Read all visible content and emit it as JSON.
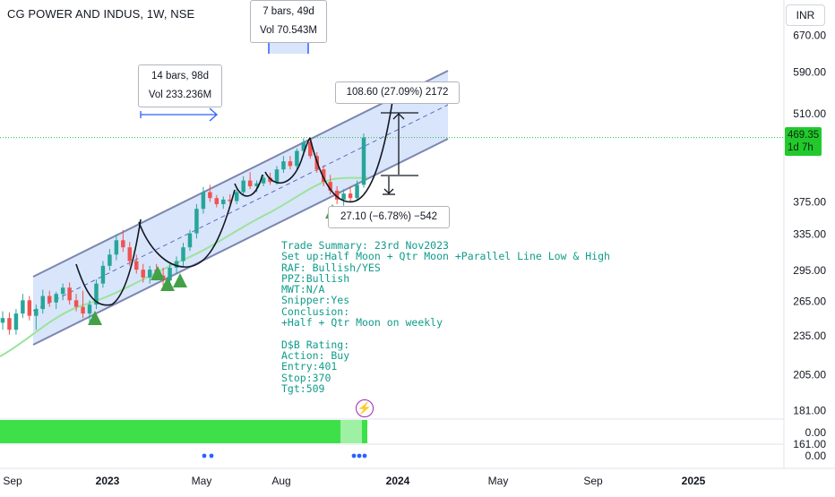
{
  "header": {
    "symbol_title": "CG POWER AND INDUS, 1W, NSE",
    "currency_label": "INR"
  },
  "price_tag": {
    "price": "469.35",
    "countdown": "1d 7h"
  },
  "measure_labels": {
    "top_range": {
      "bars": "7 bars, 49d",
      "volume": "Vol 70.543M"
    },
    "left_range": {
      "bars": "14 bars, 98d",
      "volume": "Vol 233.236M"
    },
    "up_move": "108.60 (27.09%) 2172",
    "down_move": "27.10 (−6.78%) −542"
  },
  "trade_summary": [
    "Trade Summary: 23rd Nov2023",
    "Set up:Half Moon + Qtr Moon +Parallel Line Low & High",
    "RAF: Bullish/YES",
    "PPZ:Bullish",
    "MWT:N/A",
    "Snipper:Yes",
    "Conclusion:",
    "+Half + Qtr Moon on weekly",
    "",
    "D$B Rating:",
    "Action: Buy",
    "Entry:401",
    "Stop:370",
    "Tgt:509"
  ],
  "indicator": {
    "upper_value": "0.00",
    "lower_value": "0.00",
    "icon": "lightning-icon"
  },
  "colors": {
    "up": "#26a69a",
    "down": "#ef5350",
    "channel_fill": "#c9daf8",
    "channel_border": "#7b86b0",
    "ma_line": "#9be39b",
    "price_line": "#26c13a",
    "arrow": "#2962ff",
    "triangle": "#43a047",
    "indicator_green": "#3ee04a",
    "indicator_light": "#9ef0a2"
  },
  "chart_data": {
    "type": "candlestick",
    "title": "CG POWER AND INDUS, 1W, NSE",
    "y_axis": {
      "scale": "log",
      "range": [
        150,
        720
      ],
      "ticks": [
        "670.00",
        "590.00",
        "510.00",
        "375.00",
        "335.00",
        "295.00",
        "265.00",
        "235.00",
        "205.00",
        "181.00",
        "161.00"
      ]
    },
    "x_axis": {
      "labels": [
        "Sep",
        "2023",
        "May",
        "Aug",
        "2024",
        "May",
        "Sep",
        "2025"
      ]
    },
    "last_price": 469.35,
    "candles": [
      {
        "o": 246,
        "h": 256,
        "l": 240,
        "c": 250
      },
      {
        "o": 250,
        "h": 255,
        "l": 236,
        "c": 240
      },
      {
        "o": 240,
        "h": 258,
        "l": 236,
        "c": 254
      },
      {
        "o": 254,
        "h": 272,
        "l": 250,
        "c": 266
      },
      {
        "o": 266,
        "h": 270,
        "l": 248,
        "c": 252
      },
      {
        "o": 252,
        "h": 262,
        "l": 240,
        "c": 258
      },
      {
        "o": 258,
        "h": 276,
        "l": 254,
        "c": 270
      },
      {
        "o": 270,
        "h": 275,
        "l": 260,
        "c": 264
      },
      {
        "o": 264,
        "h": 274,
        "l": 258,
        "c": 272
      },
      {
        "o": 272,
        "h": 282,
        "l": 266,
        "c": 278
      },
      {
        "o": 278,
        "h": 283,
        "l": 262,
        "c": 266
      },
      {
        "o": 266,
        "h": 272,
        "l": 256,
        "c": 260
      },
      {
        "o": 260,
        "h": 275,
        "l": 250,
        "c": 254
      },
      {
        "o": 254,
        "h": 266,
        "l": 244,
        "c": 262
      },
      {
        "o": 262,
        "h": 286,
        "l": 258,
        "c": 282
      },
      {
        "o": 282,
        "h": 305,
        "l": 278,
        "c": 300
      },
      {
        "o": 300,
        "h": 318,
        "l": 295,
        "c": 312
      },
      {
        "o": 312,
        "h": 335,
        "l": 306,
        "c": 328
      },
      {
        "o": 328,
        "h": 340,
        "l": 315,
        "c": 320
      },
      {
        "o": 320,
        "h": 326,
        "l": 300,
        "c": 305
      },
      {
        "o": 305,
        "h": 312,
        "l": 292,
        "c": 296
      },
      {
        "o": 296,
        "h": 302,
        "l": 283,
        "c": 288
      },
      {
        "o": 288,
        "h": 300,
        "l": 282,
        "c": 296
      },
      {
        "o": 296,
        "h": 302,
        "l": 285,
        "c": 290
      },
      {
        "o": 290,
        "h": 298,
        "l": 280,
        "c": 285
      },
      {
        "o": 285,
        "h": 302,
        "l": 282,
        "c": 298
      },
      {
        "o": 298,
        "h": 310,
        "l": 292,
        "c": 305
      },
      {
        "o": 305,
        "h": 325,
        "l": 300,
        "c": 320
      },
      {
        "o": 320,
        "h": 340,
        "l": 316,
        "c": 336
      },
      {
        "o": 336,
        "h": 372,
        "l": 330,
        "c": 366
      },
      {
        "o": 366,
        "h": 395,
        "l": 360,
        "c": 388
      },
      {
        "o": 388,
        "h": 398,
        "l": 375,
        "c": 380
      },
      {
        "o": 380,
        "h": 384,
        "l": 368,
        "c": 372
      },
      {
        "o": 372,
        "h": 382,
        "l": 366,
        "c": 378
      },
      {
        "o": 378,
        "h": 385,
        "l": 372,
        "c": 376
      },
      {
        "o": 376,
        "h": 392,
        "l": 372,
        "c": 388
      },
      {
        "o": 388,
        "h": 410,
        "l": 384,
        "c": 404
      },
      {
        "o": 404,
        "h": 416,
        "l": 392,
        "c": 396
      },
      {
        "o": 396,
        "h": 404,
        "l": 388,
        "c": 400
      },
      {
        "o": 400,
        "h": 412,
        "l": 396,
        "c": 408
      },
      {
        "o": 408,
        "h": 415,
        "l": 398,
        "c": 402
      },
      {
        "o": 402,
        "h": 425,
        "l": 398,
        "c": 420
      },
      {
        "o": 420,
        "h": 440,
        "l": 415,
        "c": 432
      },
      {
        "o": 432,
        "h": 440,
        "l": 420,
        "c": 425
      },
      {
        "o": 425,
        "h": 452,
        "l": 420,
        "c": 448
      },
      {
        "o": 448,
        "h": 468,
        "l": 440,
        "c": 462
      },
      {
        "o": 462,
        "h": 470,
        "l": 436,
        "c": 440
      },
      {
        "o": 440,
        "h": 446,
        "l": 415,
        "c": 420
      },
      {
        "o": 420,
        "h": 426,
        "l": 396,
        "c": 402
      },
      {
        "o": 402,
        "h": 412,
        "l": 385,
        "c": 390
      },
      {
        "o": 390,
        "h": 396,
        "l": 372,
        "c": 378
      },
      {
        "o": 378,
        "h": 392,
        "l": 370,
        "c": 386
      },
      {
        "o": 386,
        "h": 396,
        "l": 374,
        "c": 380
      },
      {
        "o": 380,
        "h": 404,
        "l": 376,
        "c": 398
      },
      {
        "o": 398,
        "h": 476,
        "l": 394,
        "c": 469.35
      }
    ]
  }
}
